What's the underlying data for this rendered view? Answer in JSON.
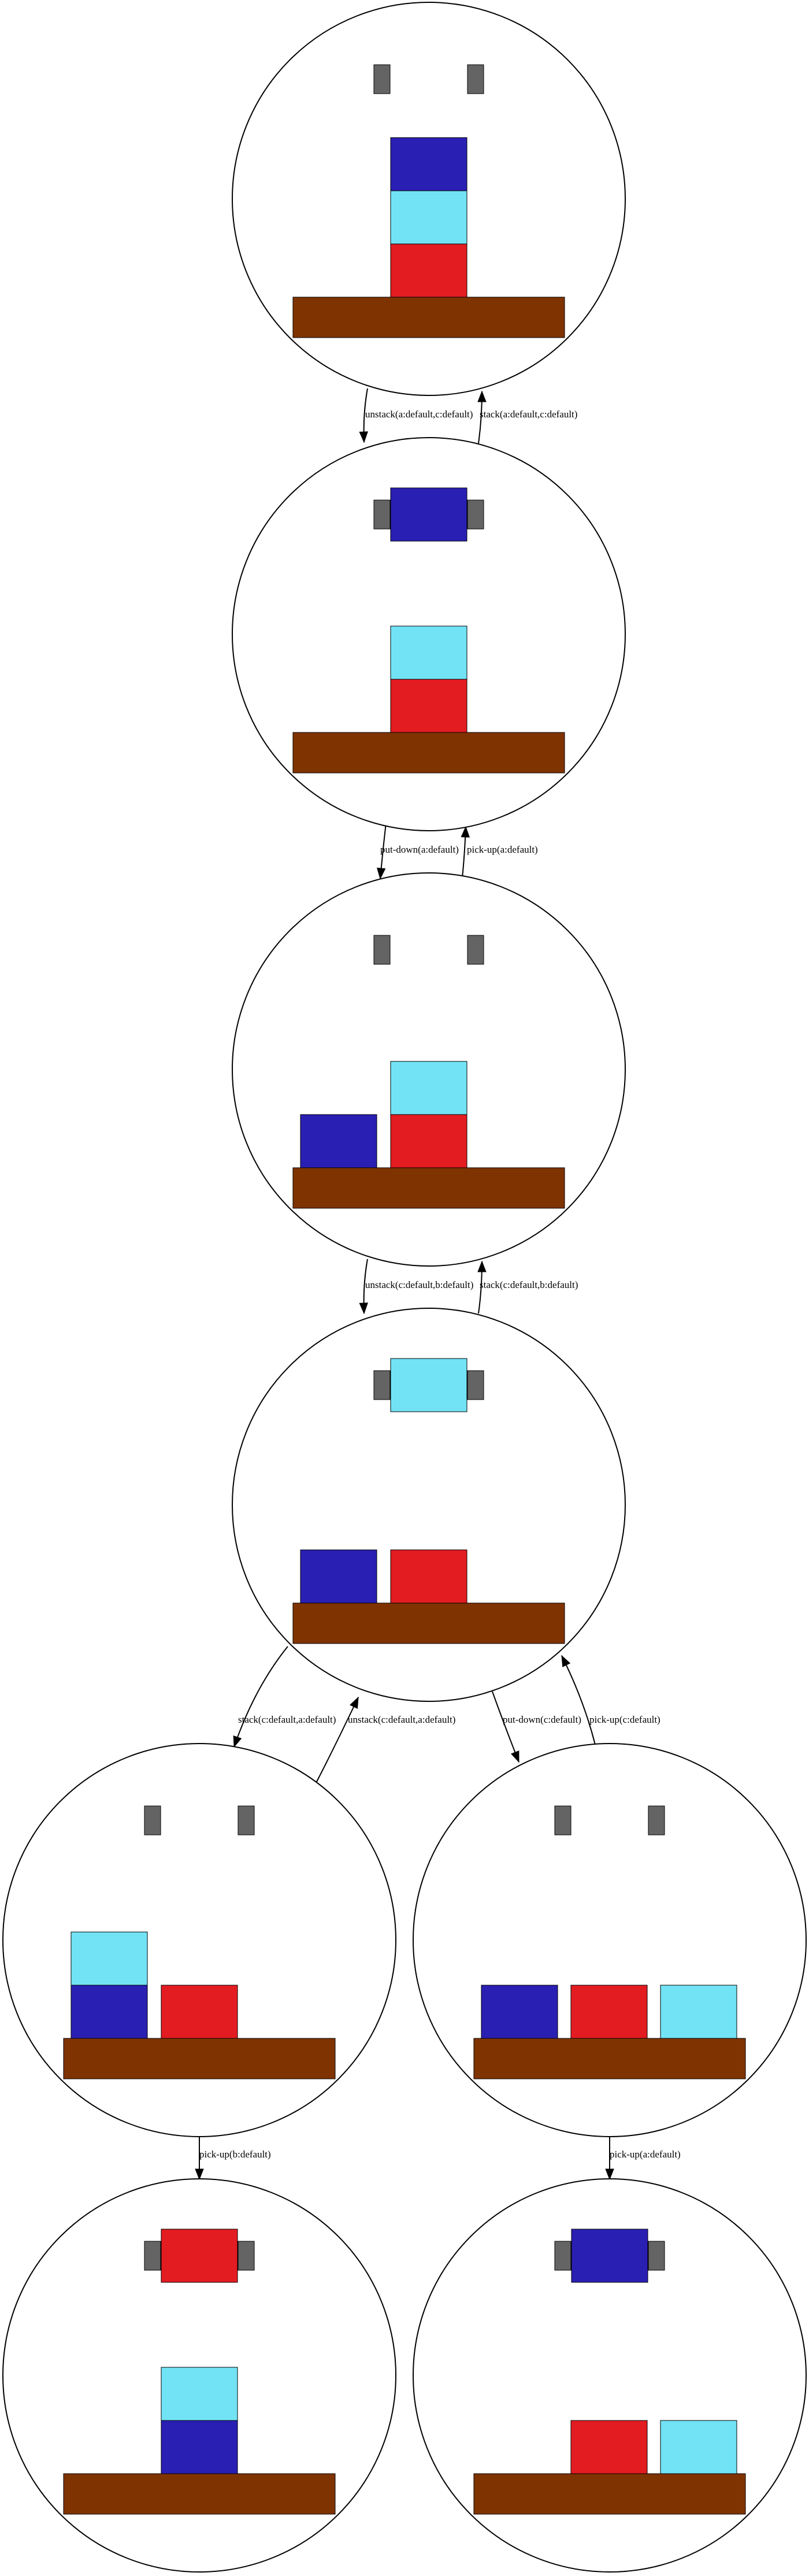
{
  "colors": {
    "a": "#2a1fb3",
    "b": "#e31c21",
    "c": "#72e3f5",
    "table": "#7f3300",
    "gripper": "#646464",
    "line": "#000000"
  },
  "icons": {
    "gripper": "gripper-icon",
    "table": "table-icon",
    "block": "block-icon"
  },
  "states": [
    {
      "id": "s0",
      "holding": null,
      "stacks": [
        [
          "b",
          "c",
          "a"
        ]
      ]
    },
    {
      "id": "s1",
      "holding": "a",
      "stacks": [
        [
          "b",
          "c"
        ]
      ]
    },
    {
      "id": "s2",
      "holding": null,
      "stacks": [
        [
          "a"
        ],
        [
          "b",
          "c"
        ]
      ]
    },
    {
      "id": "s3",
      "holding": "c",
      "stacks": [
        [
          "a"
        ],
        [
          "b"
        ]
      ]
    },
    {
      "id": "s4",
      "holding": null,
      "stacks": [
        [
          "a",
          "c"
        ],
        [
          "b"
        ]
      ]
    },
    {
      "id": "s5",
      "holding": null,
      "stacks": [
        [
          "a"
        ],
        [
          "b"
        ],
        [
          "c"
        ]
      ]
    },
    {
      "id": "s6",
      "holding": "b",
      "stacks": [
        [
          "a",
          "c"
        ]
      ]
    },
    {
      "id": "s7",
      "holding": "a",
      "stacks": [
        [],
        [
          "b"
        ],
        [
          "c"
        ]
      ]
    }
  ],
  "edges": [
    {
      "from": "s0",
      "to": "s1",
      "label": "unstack(a:default,c:default)"
    },
    {
      "from": "s1",
      "to": "s0",
      "label": "stack(a:default,c:default)"
    },
    {
      "from": "s1",
      "to": "s2",
      "label": "put-down(a:default)"
    },
    {
      "from": "s2",
      "to": "s1",
      "label": "pick-up(a:default)"
    },
    {
      "from": "s2",
      "to": "s3",
      "label": "unstack(c:default,b:default)"
    },
    {
      "from": "s3",
      "to": "s2",
      "label": "stack(c:default,b:default)"
    },
    {
      "from": "s3",
      "to": "s4",
      "label": "stack(c:default,a:default)"
    },
    {
      "from": "s4",
      "to": "s3",
      "label": "unstack(c:default,a:default)"
    },
    {
      "from": "s3",
      "to": "s5",
      "label": "put-down(c:default)"
    },
    {
      "from": "s5",
      "to": "s3",
      "label": "pick-up(c:default)"
    },
    {
      "from": "s4",
      "to": "s6",
      "label": "pick-up(b:default)"
    },
    {
      "from": "s5",
      "to": "s7",
      "label": "pick-up(a:default)"
    }
  ]
}
